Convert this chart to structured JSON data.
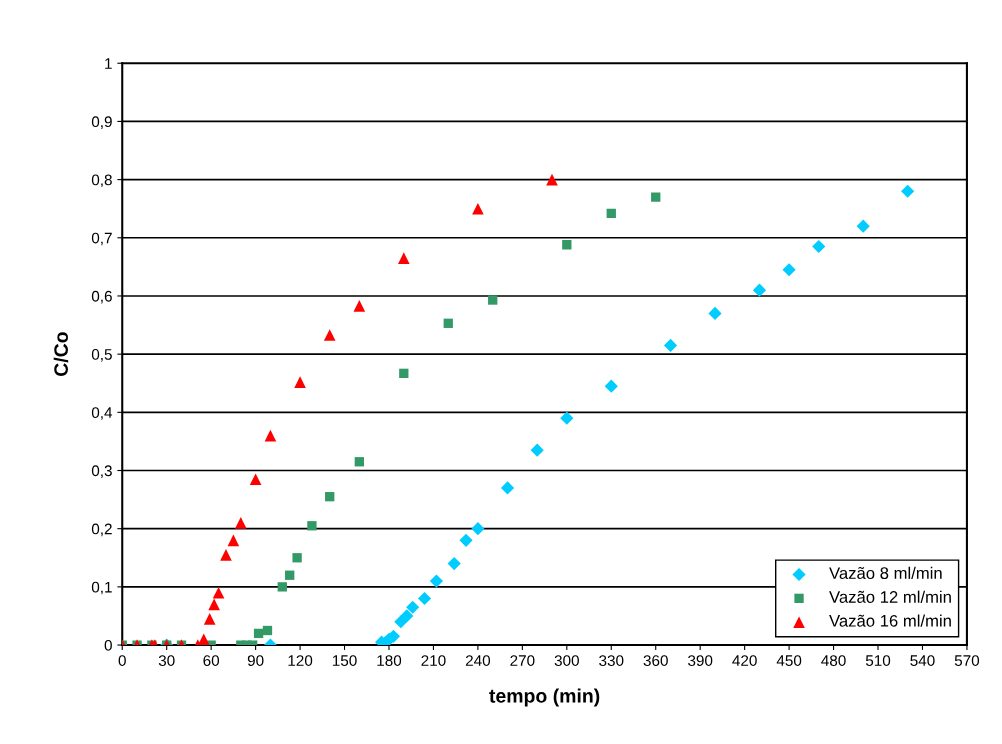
{
  "chart_data": {
    "type": "scatter",
    "xlabel": "tempo (min)",
    "ylabel": "C/Co",
    "xlim": [
      0,
      570
    ],
    "ylim": [
      0,
      1
    ],
    "xticks": [
      0,
      30,
      60,
      90,
      120,
      150,
      180,
      210,
      240,
      270,
      300,
      330,
      360,
      390,
      420,
      450,
      480,
      510,
      540,
      570
    ],
    "yticks": [
      {
        "value": 0,
        "label": "0"
      },
      {
        "value": 0.1,
        "label": "0,1"
      },
      {
        "value": 0.2,
        "label": "0,2"
      },
      {
        "value": 0.3,
        "label": "0,3"
      },
      {
        "value": 0.4,
        "label": "0,4"
      },
      {
        "value": 0.5,
        "label": "0,5"
      },
      {
        "value": 0.6,
        "label": "0,6"
      },
      {
        "value": 0.7,
        "label": "0,7"
      },
      {
        "value": 0.8,
        "label": "0,8"
      },
      {
        "value": 0.9,
        "label": "0,9"
      },
      {
        "value": 1,
        "label": "1"
      }
    ],
    "grid": "y",
    "legend": "bottom right",
    "series": [
      {
        "name": "Vazão 8 ml/min",
        "color": "#00ccff",
        "marker": "diamond",
        "x": [
          30,
          100,
          175,
          178,
          180,
          183,
          188,
          192,
          196,
          204,
          212,
          224,
          232,
          240,
          260,
          280,
          300,
          330,
          370,
          400,
          430,
          450,
          470,
          500,
          530
        ],
        "values": [
          0,
          0,
          0.005,
          0.005,
          0.01,
          0.015,
          0.04,
          0.05,
          0.065,
          0.08,
          0.11,
          0.14,
          0.18,
          0.2,
          0.27,
          0.335,
          0.39,
          0.445,
          0.515,
          0.57,
          0.61,
          0.645,
          0.685,
          0.72,
          0.78
        ]
      },
      {
        "name": "Vazão 12 ml/min",
        "color": "#339966",
        "marker": "square",
        "x": [
          0,
          10,
          20,
          30,
          40,
          60,
          80,
          84,
          88,
          92,
          98,
          108,
          113,
          118,
          128,
          140,
          160,
          190,
          220,
          250,
          300,
          330,
          360
        ],
        "values": [
          0,
          0,
          0,
          0,
          0,
          0,
          0,
          0,
          0,
          0.02,
          0.025,
          0.1,
          0.12,
          0.15,
          0.205,
          0.255,
          0.315,
          0.467,
          0.553,
          0.593,
          0.688,
          0.742,
          0.77
        ]
      },
      {
        "name": "Vazão 16 ml/min",
        "color": "#ff0000",
        "marker": "triangle",
        "x": [
          0,
          10,
          20,
          22,
          30,
          40,
          51,
          55,
          59,
          62,
          65,
          70,
          75,
          80,
          90,
          100,
          120,
          140,
          160,
          190,
          240,
          290
        ],
        "values": [
          0,
          0,
          0,
          0,
          0,
          0,
          0,
          0.01,
          0.045,
          0.07,
          0.09,
          0.155,
          0.18,
          0.21,
          0.285,
          0.36,
          0.452,
          0.533,
          0.583,
          0.665,
          0.75,
          0.8
        ]
      }
    ]
  }
}
